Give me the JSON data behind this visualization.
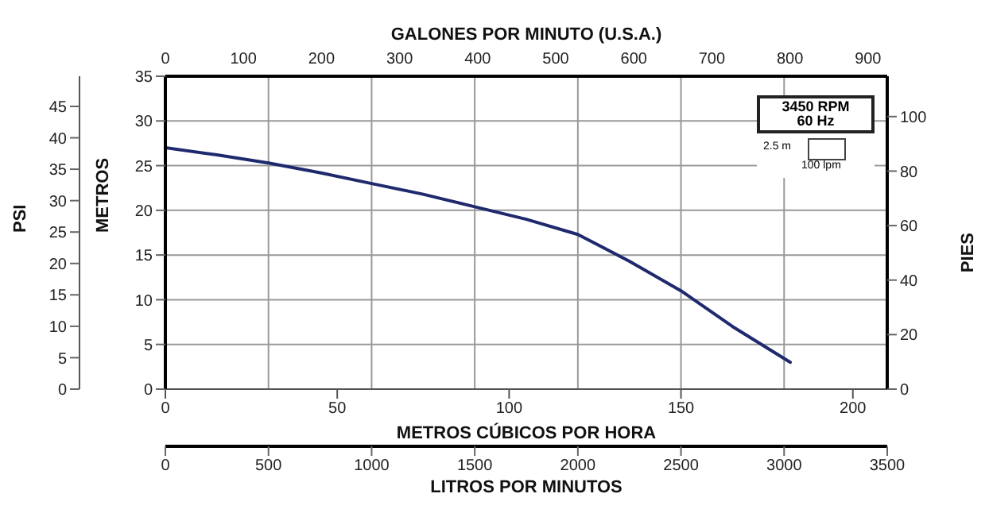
{
  "chart_data": {
    "type": "line",
    "x": [
      0,
      250,
      500,
      750,
      1000,
      1250,
      1500,
      1750,
      2000,
      2250,
      2500,
      2750,
      3030
    ],
    "series": [
      {
        "color": "#1f2a6e",
        "values": [
          27.0,
          26.2,
          25.3,
          24.2,
          23.0,
          21.8,
          20.4,
          19.0,
          17.3,
          14.3,
          11.0,
          7.0,
          3.0
        ]
      }
    ],
    "xlabel": "LITROS POR MINUTOS",
    "xlim": [
      0,
      3500
    ],
    "xticks": [
      0,
      500,
      1000,
      1500,
      2000,
      2500,
      3000,
      3500
    ],
    "x2label": "GALONES POR MINUTO (U.S.A.)",
    "x2lim": [
      0,
      924.6
    ],
    "x2ticks": [
      0,
      100,
      200,
      300,
      400,
      500,
      600,
      700,
      800,
      900
    ],
    "ylabel": "METROS",
    "ylim": [
      0,
      35
    ],
    "yticks": [
      0,
      5,
      10,
      15,
      20,
      25,
      30,
      35
    ],
    "y2label": "PIES",
    "y2lim": [
      0,
      114.8
    ],
    "y2ticks": [
      0,
      20,
      40,
      60,
      80,
      100
    ],
    "y3label": "PSI",
    "y3lim": [
      0,
      49.8
    ],
    "y3ticks": [
      0,
      5,
      10,
      15,
      20,
      25,
      30,
      35,
      40,
      45
    ],
    "grid": true,
    "marker": "none",
    "line_style": "solid",
    "annotations": [
      "3450 RPM",
      "60 Hz",
      "2.5 m",
      "100 lpm",
      "METROS CÚBICOS POR HORA",
      "0",
      "50",
      "100",
      "150",
      "200"
    ]
  }
}
